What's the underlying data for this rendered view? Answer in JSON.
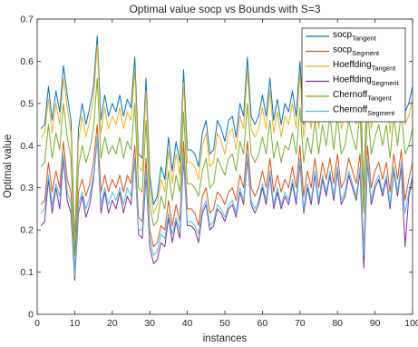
{
  "chart_data": {
    "type": "line",
    "title": "Optimal value socp vs Bounds with S=3",
    "xlabel": "instances",
    "ylabel": "Optimal value",
    "xlim": [
      0,
      100
    ],
    "ylim": [
      0,
      0.7
    ],
    "xticks": [
      0,
      10,
      20,
      30,
      40,
      50,
      60,
      70,
      80,
      90,
      100
    ],
    "xtick_labels": [
      "0",
      "10",
      "20",
      "30",
      "40",
      "50",
      "60",
      "70",
      "80",
      "90",
      "100"
    ],
    "yticks": [
      0,
      0.1,
      0.2,
      0.3,
      0.4,
      0.5,
      0.6,
      0.7
    ],
    "ytick_labels": [
      "0",
      "0.1",
      "0.2",
      "0.3",
      "0.4",
      "0.5",
      "0.6",
      "0.7"
    ],
    "grid": false,
    "legend_position": "top-right",
    "x": [
      1,
      2,
      3,
      4,
      5,
      6,
      7,
      8,
      9,
      10,
      11,
      12,
      13,
      14,
      15,
      16,
      17,
      18,
      19,
      20,
      21,
      22,
      23,
      24,
      25,
      26,
      27,
      28,
      29,
      30,
      31,
      32,
      33,
      34,
      35,
      36,
      37,
      38,
      39,
      40,
      41,
      42,
      43,
      44,
      45,
      46,
      47,
      48,
      49,
      50,
      51,
      52,
      53,
      54,
      55,
      56,
      57,
      58,
      59,
      60,
      61,
      62,
      63,
      64,
      65,
      66,
      67,
      68,
      69,
      70,
      71,
      72,
      73,
      74,
      75,
      76,
      77,
      78,
      79,
      80,
      81,
      82,
      83,
      84,
      85,
      86,
      87,
      88,
      89,
      90,
      91,
      92,
      93,
      94,
      95,
      96,
      97,
      98,
      99,
      100
    ],
    "series": [
      {
        "name": "socp",
        "sub": "Tangent",
        "color": "#0072BD",
        "values": [
          0.44,
          0.45,
          0.54,
          0.46,
          0.53,
          0.48,
          0.59,
          0.52,
          0.46,
          0.17,
          0.44,
          0.5,
          0.45,
          0.49,
          0.54,
          0.66,
          0.46,
          0.52,
          0.47,
          0.5,
          0.48,
          0.52,
          0.47,
          0.51,
          0.49,
          0.61,
          0.38,
          0.37,
          0.56,
          0.33,
          0.26,
          0.28,
          0.35,
          0.32,
          0.42,
          0.34,
          0.41,
          0.36,
          0.58,
          0.39,
          0.39,
          0.38,
          0.35,
          0.43,
          0.46,
          0.38,
          0.39,
          0.46,
          0.44,
          0.41,
          0.46,
          0.47,
          0.42,
          0.5,
          0.47,
          0.61,
          0.47,
          0.45,
          0.47,
          0.52,
          0.47,
          0.56,
          0.46,
          0.51,
          0.45,
          0.5,
          0.48,
          0.53,
          0.47,
          0.6,
          0.45,
          0.52,
          0.47,
          0.56,
          0.47,
          0.55,
          0.5,
          0.57,
          0.49,
          0.58,
          0.47,
          0.5,
          0.56,
          0.52,
          0.48,
          0.58,
          0.28,
          0.6,
          0.47,
          0.52,
          0.55,
          0.5,
          0.55,
          0.46,
          0.57,
          0.5,
          0.59,
          0.48,
          0.5,
          0.54
        ]
      },
      {
        "name": "socp",
        "sub": "Segment",
        "color": "#D95319",
        "values": [
          0.26,
          0.27,
          0.36,
          0.29,
          0.34,
          0.3,
          0.41,
          0.32,
          0.29,
          0.1,
          0.29,
          0.32,
          0.28,
          0.31,
          0.36,
          0.45,
          0.29,
          0.33,
          0.29,
          0.32,
          0.3,
          0.33,
          0.29,
          0.33,
          0.31,
          0.4,
          0.23,
          0.22,
          0.37,
          0.2,
          0.16,
          0.17,
          0.21,
          0.2,
          0.27,
          0.21,
          0.26,
          0.22,
          0.41,
          0.25,
          0.25,
          0.24,
          0.21,
          0.28,
          0.3,
          0.24,
          0.25,
          0.29,
          0.28,
          0.26,
          0.29,
          0.3,
          0.27,
          0.33,
          0.3,
          0.41,
          0.3,
          0.28,
          0.3,
          0.34,
          0.3,
          0.37,
          0.29,
          0.33,
          0.29,
          0.32,
          0.3,
          0.35,
          0.3,
          0.4,
          0.28,
          0.34,
          0.3,
          0.37,
          0.3,
          0.36,
          0.32,
          0.37,
          0.31,
          0.38,
          0.3,
          0.32,
          0.37,
          0.34,
          0.31,
          0.38,
          0.15,
          0.4,
          0.3,
          0.34,
          0.36,
          0.32,
          0.36,
          0.29,
          0.38,
          0.32,
          0.39,
          0.27,
          0.32,
          0.36
        ]
      },
      {
        "name": "Hoeffding",
        "sub": "Tangent",
        "color": "#EDB120",
        "values": [
          0.42,
          0.43,
          0.51,
          0.43,
          0.5,
          0.45,
          0.56,
          0.49,
          0.43,
          0.16,
          0.41,
          0.47,
          0.42,
          0.46,
          0.51,
          0.64,
          0.43,
          0.49,
          0.44,
          0.47,
          0.45,
          0.49,
          0.44,
          0.48,
          0.46,
          0.58,
          0.35,
          0.34,
          0.53,
          0.3,
          0.24,
          0.26,
          0.32,
          0.29,
          0.39,
          0.31,
          0.38,
          0.33,
          0.55,
          0.36,
          0.36,
          0.35,
          0.32,
          0.4,
          0.43,
          0.35,
          0.36,
          0.43,
          0.41,
          0.38,
          0.43,
          0.44,
          0.39,
          0.47,
          0.44,
          0.58,
          0.44,
          0.42,
          0.44,
          0.49,
          0.44,
          0.53,
          0.43,
          0.48,
          0.42,
          0.47,
          0.45,
          0.5,
          0.44,
          0.57,
          0.42,
          0.49,
          0.44,
          0.53,
          0.44,
          0.52,
          0.47,
          0.54,
          0.46,
          0.55,
          0.44,
          0.47,
          0.53,
          0.49,
          0.45,
          0.55,
          0.26,
          0.57,
          0.44,
          0.49,
          0.52,
          0.47,
          0.52,
          0.43,
          0.54,
          0.47,
          0.56,
          0.45,
          0.47,
          0.51
        ]
      },
      {
        "name": "Hoeffding",
        "sub": "Segment",
        "color": "#7E2F8E",
        "values": [
          0.21,
          0.22,
          0.32,
          0.24,
          0.3,
          0.25,
          0.37,
          0.27,
          0.24,
          0.08,
          0.24,
          0.28,
          0.23,
          0.26,
          0.32,
          0.42,
          0.24,
          0.29,
          0.24,
          0.27,
          0.25,
          0.29,
          0.24,
          0.28,
          0.26,
          0.37,
          0.19,
          0.18,
          0.33,
          0.16,
          0.12,
          0.13,
          0.17,
          0.16,
          0.23,
          0.17,
          0.22,
          0.18,
          0.37,
          0.21,
          0.21,
          0.2,
          0.17,
          0.24,
          0.26,
          0.2,
          0.21,
          0.25,
          0.24,
          0.22,
          0.25,
          0.26,
          0.23,
          0.29,
          0.26,
          0.37,
          0.26,
          0.24,
          0.26,
          0.3,
          0.26,
          0.33,
          0.25,
          0.29,
          0.25,
          0.28,
          0.26,
          0.31,
          0.26,
          0.36,
          0.24,
          0.3,
          0.26,
          0.33,
          0.26,
          0.32,
          0.28,
          0.33,
          0.27,
          0.34,
          0.26,
          0.28,
          0.33,
          0.3,
          0.27,
          0.34,
          0.11,
          0.36,
          0.26,
          0.3,
          0.32,
          0.28,
          0.32,
          0.25,
          0.34,
          0.28,
          0.35,
          0.16,
          0.28,
          0.32
        ]
      },
      {
        "name": "Chernoff",
        "sub": "Tangent",
        "color": "#77AC30",
        "values": [
          0.35,
          0.36,
          0.45,
          0.37,
          0.43,
          0.39,
          0.5,
          0.42,
          0.37,
          0.14,
          0.35,
          0.4,
          0.36,
          0.39,
          0.44,
          0.56,
          0.37,
          0.42,
          0.38,
          0.4,
          0.38,
          0.42,
          0.37,
          0.41,
          0.39,
          0.5,
          0.3,
          0.29,
          0.46,
          0.26,
          0.21,
          0.22,
          0.28,
          0.25,
          0.34,
          0.27,
          0.33,
          0.29,
          0.48,
          0.31,
          0.31,
          0.3,
          0.28,
          0.34,
          0.37,
          0.3,
          0.31,
          0.37,
          0.35,
          0.33,
          0.37,
          0.38,
          0.34,
          0.41,
          0.38,
          0.5,
          0.38,
          0.36,
          0.38,
          0.42,
          0.38,
          0.46,
          0.37,
          0.41,
          0.36,
          0.4,
          0.39,
          0.43,
          0.38,
          0.49,
          0.36,
          0.42,
          0.38,
          0.46,
          0.38,
          0.45,
          0.4,
          0.47,
          0.39,
          0.47,
          0.38,
          0.4,
          0.46,
          0.42,
          0.39,
          0.48,
          0.24,
          0.49,
          0.38,
          0.42,
          0.45,
          0.4,
          0.45,
          0.37,
          0.47,
          0.4,
          0.48,
          0.38,
          0.4,
          0.44
        ]
      },
      {
        "name": "Chernoff",
        "sub": "Segment",
        "color": "#4DBEEE",
        "values": [
          0.24,
          0.25,
          0.33,
          0.26,
          0.31,
          0.28,
          0.38,
          0.29,
          0.26,
          0.09,
          0.26,
          0.29,
          0.25,
          0.28,
          0.33,
          0.42,
          0.26,
          0.3,
          0.26,
          0.29,
          0.27,
          0.3,
          0.26,
          0.3,
          0.28,
          0.37,
          0.2,
          0.2,
          0.34,
          0.18,
          0.14,
          0.15,
          0.19,
          0.18,
          0.24,
          0.19,
          0.23,
          0.2,
          0.38,
          0.22,
          0.22,
          0.21,
          0.19,
          0.25,
          0.27,
          0.21,
          0.22,
          0.26,
          0.25,
          0.23,
          0.26,
          0.27,
          0.24,
          0.3,
          0.27,
          0.38,
          0.27,
          0.25,
          0.27,
          0.31,
          0.27,
          0.34,
          0.26,
          0.3,
          0.26,
          0.29,
          0.27,
          0.32,
          0.27,
          0.37,
          0.25,
          0.31,
          0.27,
          0.34,
          0.27,
          0.33,
          0.29,
          0.34,
          0.28,
          0.35,
          0.27,
          0.29,
          0.34,
          0.31,
          0.28,
          0.35,
          0.14,
          0.37,
          0.27,
          0.31,
          0.33,
          0.29,
          0.33,
          0.26,
          0.35,
          0.29,
          0.36,
          0.24,
          0.29,
          0.33
        ]
      }
    ]
  }
}
